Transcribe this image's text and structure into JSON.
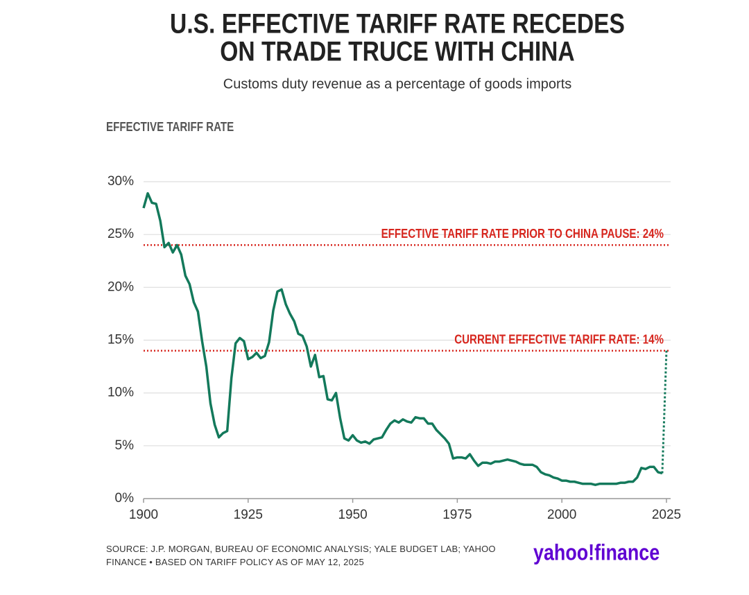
{
  "chart_data": {
    "type": "line",
    "title": [
      "U.S. EFFECTIVE TARIFF RATE RECEDES",
      "ON TRADE TRUCE WITH CHINA"
    ],
    "subtitle": "Customs duty revenue as a percentage of goods imports",
    "y_label": "EFFECTIVE TARIFF RATE",
    "source": "SOURCE: J.P. MORGAN, BUREAU OF ECONOMIC ANALYSIS; YALE BUDGET LAB; YAHOO FINANCE • BASED ON TARIFF POLICY AS OF MAY 12, 2025",
    "logo": "yahoo!finance",
    "xlim": [
      1900,
      2026
    ],
    "ylim": [
      0,
      30
    ],
    "xticks": [
      1900,
      1925,
      1950,
      1975,
      2000,
      2025
    ],
    "yticks": [
      {
        "value": 0,
        "label": "0%"
      },
      {
        "value": 5,
        "label": "5%"
      },
      {
        "value": 10,
        "label": "10%"
      },
      {
        "value": 15,
        "label": "15%"
      },
      {
        "value": 20,
        "label": "20%"
      },
      {
        "value": 25,
        "label": "25%"
      },
      {
        "value": 30,
        "label": "30%"
      }
    ],
    "grid": true,
    "x": [
      1900,
      1901,
      1902,
      1903,
      1904,
      1905,
      1906,
      1907,
      1908,
      1909,
      1910,
      1911,
      1912,
      1913,
      1914,
      1915,
      1916,
      1917,
      1918,
      1919,
      1920,
      1921,
      1922,
      1923,
      1924,
      1925,
      1926,
      1927,
      1928,
      1929,
      1930,
      1931,
      1932,
      1933,
      1934,
      1935,
      1936,
      1937,
      1938,
      1939,
      1940,
      1941,
      1942,
      1943,
      1944,
      1945,
      1946,
      1947,
      1948,
      1949,
      1950,
      1951,
      1952,
      1953,
      1954,
      1955,
      1956,
      1957,
      1958,
      1959,
      1960,
      1961,
      1962,
      1963,
      1964,
      1965,
      1966,
      1967,
      1968,
      1969,
      1970,
      1971,
      1972,
      1973,
      1974,
      1975,
      1976,
      1977,
      1978,
      1979,
      1980,
      1981,
      1982,
      1983,
      1984,
      1985,
      1986,
      1987,
      1988,
      1989,
      1990,
      1991,
      1992,
      1993,
      1994,
      1995,
      1996,
      1997,
      1998,
      1999,
      2000,
      2001,
      2002,
      2003,
      2004,
      2005,
      2006,
      2007,
      2008,
      2009,
      2010,
      2011,
      2012,
      2013,
      2014,
      2015,
      2016,
      2017,
      2018,
      2019,
      2020,
      2021,
      2022,
      2023,
      2024
    ],
    "series": [
      {
        "color": "#13795b",
        "values": [
          27.5,
          28.9,
          28.0,
          27.9,
          26.3,
          23.8,
          24.2,
          23.3,
          24.0,
          23.1,
          21.1,
          20.3,
          18.6,
          17.7,
          14.9,
          12.5,
          9.0,
          7.0,
          5.8,
          6.2,
          6.4,
          11.4,
          14.7,
          15.2,
          14.9,
          13.2,
          13.4,
          13.8,
          13.3,
          13.5,
          14.8,
          17.8,
          19.6,
          19.8,
          18.4,
          17.5,
          16.8,
          15.6,
          15.4,
          14.4,
          12.5,
          13.6,
          11.5,
          11.6,
          9.4,
          9.3,
          10.0,
          7.6,
          5.7,
          5.5,
          6.0,
          5.5,
          5.3,
          5.4,
          5.2,
          5.6,
          5.7,
          5.8,
          6.5,
          7.1,
          7.4,
          7.2,
          7.5,
          7.3,
          7.2,
          7.7,
          7.6,
          7.6,
          7.1,
          7.1,
          6.5,
          6.1,
          5.7,
          5.2,
          3.8,
          3.9,
          3.9,
          3.8,
          4.2,
          3.6,
          3.1,
          3.4,
          3.4,
          3.3,
          3.5,
          3.5,
          3.6,
          3.7,
          3.6,
          3.5,
          3.3,
          3.2,
          3.2,
          3.2,
          3.0,
          2.5,
          2.3,
          2.2,
          2.0,
          1.9,
          1.7,
          1.7,
          1.6,
          1.6,
          1.5,
          1.4,
          1.4,
          1.4,
          1.3,
          1.4,
          1.4,
          1.4,
          1.4,
          1.4,
          1.5,
          1.5,
          1.6,
          1.6,
          2.0,
          2.9,
          2.8,
          3.0,
          3.0,
          2.5,
          2.4
        ]
      }
    ],
    "projection": {
      "x": [
        2025
      ],
      "values": [
        14
      ],
      "color": "#13795b",
      "dashed": true
    },
    "reference_lines": [
      {
        "value": 24,
        "label": "EFFECTIVE TARIFF RATE PRIOR TO CHINA PAUSE: 24%",
        "color": "#d7261e"
      },
      {
        "value": 14,
        "label": "CURRENT EFFECTIVE TARIFF RATE: 14%",
        "color": "#d7261e"
      }
    ]
  }
}
